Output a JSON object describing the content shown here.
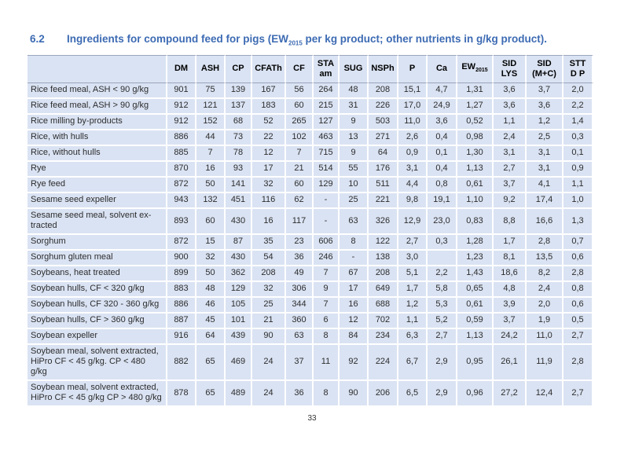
{
  "heading": {
    "number": "6.2",
    "title_pre": "Ingredients for compound feed for pigs (EW",
    "title_sub": "2015",
    "title_post": " per kg product; other nutrients in g/kg product)."
  },
  "page_number": "33",
  "colors": {
    "title_blue": "#3d6bb3",
    "cell_bg": "#dae3f3",
    "header_rule": "#9aa5bd"
  },
  "table": {
    "columns": [
      {
        "id": "ingredient",
        "l1": ""
      },
      {
        "id": "dm",
        "l1": "DM"
      },
      {
        "id": "ash",
        "l1": "ASH"
      },
      {
        "id": "cp",
        "l1": "CP"
      },
      {
        "id": "cfath",
        "l1": "CFATh"
      },
      {
        "id": "cf",
        "l1": "CF"
      },
      {
        "id": "sta-am",
        "l1": "STA",
        "l2": "am"
      },
      {
        "id": "sug",
        "l1": "SUG"
      },
      {
        "id": "nsph",
        "l1": "NSPh"
      },
      {
        "id": "p",
        "l1": "P"
      },
      {
        "id": "ca",
        "l1": "Ca"
      },
      {
        "id": "ew2015",
        "l1": "EW",
        "sub": "2015"
      },
      {
        "id": "sid-lys",
        "l1": "SID",
        "l2": "LYS"
      },
      {
        "id": "sid-mc",
        "l1": "SID",
        "l2": "(M+C)"
      },
      {
        "id": "stt-dp",
        "l1": "STT",
        "l2": "D P"
      }
    ],
    "rows": [
      {
        "name": "Rice feed meal, ASH < 90 g/kg",
        "values": [
          "901",
          "75",
          "139",
          "167",
          "56",
          "264",
          "48",
          "208",
          "15,1",
          "4,7",
          "1,31",
          "3,6",
          "3,7",
          "2,0"
        ]
      },
      {
        "name": "Rice feed meal, ASH > 90 g/kg",
        "values": [
          "912",
          "121",
          "137",
          "183",
          "60",
          "215",
          "31",
          "226",
          "17,0",
          "24,9",
          "1,27",
          "3,6",
          "3,6",
          "2,2"
        ]
      },
      {
        "name": "Rice milling by-products",
        "values": [
          "912",
          "152",
          "68",
          "52",
          "265",
          "127",
          "9",
          "503",
          "11,0",
          "3,6",
          "0,52",
          "1,1",
          "1,2",
          "1,4"
        ]
      },
      {
        "name": "Rice, with hulls",
        "values": [
          "886",
          "44",
          "73",
          "22",
          "102",
          "463",
          "13",
          "271",
          "2,6",
          "0,4",
          "0,98",
          "2,4",
          "2,5",
          "0,3"
        ]
      },
      {
        "name": "Rice, without hulls",
        "values": [
          "885",
          "7",
          "78",
          "12",
          "7",
          "715",
          "9",
          "64",
          "0,9",
          "0,1",
          "1,30",
          "3,1",
          "3,1",
          "0,1"
        ]
      },
      {
        "name": "Rye",
        "values": [
          "870",
          "16",
          "93",
          "17",
          "21",
          "514",
          "55",
          "176",
          "3,1",
          "0,4",
          "1,13",
          "2,7",
          "3,1",
          "0,9"
        ]
      },
      {
        "name": "Rye feed",
        "values": [
          "872",
          "50",
          "141",
          "32",
          "60",
          "129",
          "10",
          "511",
          "4,4",
          "0,8",
          "0,61",
          "3,7",
          "4,1",
          "1,1"
        ]
      },
      {
        "name": "Sesame seed expeller",
        "values": [
          "943",
          "132",
          "451",
          "116",
          "62",
          "-",
          "25",
          "221",
          "9,8",
          "19,1",
          "1,10",
          "9,2",
          "17,4",
          "1,0"
        ]
      },
      {
        "name": "Sesame seed meal, solvent ex-\ntracted",
        "values": [
          "893",
          "60",
          "430",
          "16",
          "117",
          "-",
          "63",
          "326",
          "12,9",
          "23,0",
          "0,83",
          "8,8",
          "16,6",
          "1,3"
        ]
      },
      {
        "name": "Sorghum",
        "values": [
          "872",
          "15",
          "87",
          "35",
          "23",
          "606",
          "8",
          "122",
          "2,7",
          "0,3",
          "1,28",
          "1,7",
          "2,8",
          "0,7"
        ]
      },
      {
        "name": "Sorghum gluten meal",
        "values": [
          "900",
          "32",
          "430",
          "54",
          "36",
          "246",
          "-",
          "138",
          "3,0",
          "",
          "1,23",
          "8,1",
          "13,5",
          "0,6"
        ]
      },
      {
        "name": "Soybeans, heat treated",
        "values": [
          "899",
          "50",
          "362",
          "208",
          "49",
          "7",
          "67",
          "208",
          "5,1",
          "2,2",
          "1,43",
          "18,6",
          "8,2",
          "2,8"
        ]
      },
      {
        "name": "Soybean hulls, CF < 320 g/kg",
        "values": [
          "883",
          "48",
          "129",
          "32",
          "306",
          "9",
          "17",
          "649",
          "1,7",
          "5,8",
          "0,65",
          "4,8",
          "2,4",
          "0,8"
        ]
      },
      {
        "name": "Soybean hulls, CF 320 - 360 g/kg",
        "values": [
          "886",
          "46",
          "105",
          "25",
          "344",
          "7",
          "16",
          "688",
          "1,2",
          "5,3",
          "0,61",
          "3,9",
          "2,0",
          "0,6"
        ]
      },
      {
        "name": "Soybean hulls, CF > 360 g/kg",
        "values": [
          "887",
          "45",
          "101",
          "21",
          "360",
          "6",
          "12",
          "702",
          "1,1",
          "5,2",
          "0,59",
          "3,7",
          "1,9",
          "0,5"
        ]
      },
      {
        "name": "Soybean expeller",
        "values": [
          "916",
          "64",
          "439",
          "90",
          "63",
          "8",
          "84",
          "234",
          "6,3",
          "2,7",
          "1,13",
          "24,2",
          "11,0",
          "2,7"
        ]
      },
      {
        "name": "Soybean meal, solvent extracted,\nHiPro CF < 45 g/kg. CP < 480 g/kg",
        "values": [
          "882",
          "65",
          "469",
          "24",
          "37",
          "11",
          "92",
          "224",
          "6,7",
          "2,9",
          "0,95",
          "26,1",
          "11,9",
          "2,8"
        ]
      },
      {
        "name": "Soybean meal, solvent extracted,\nHiPro CF < 45 g/kg CP > 480 g/kg",
        "values": [
          "878",
          "65",
          "489",
          "24",
          "36",
          "8",
          "90",
          "206",
          "6,5",
          "2,9",
          "0,96",
          "27,2",
          "12,4",
          "2,7"
        ]
      }
    ]
  }
}
